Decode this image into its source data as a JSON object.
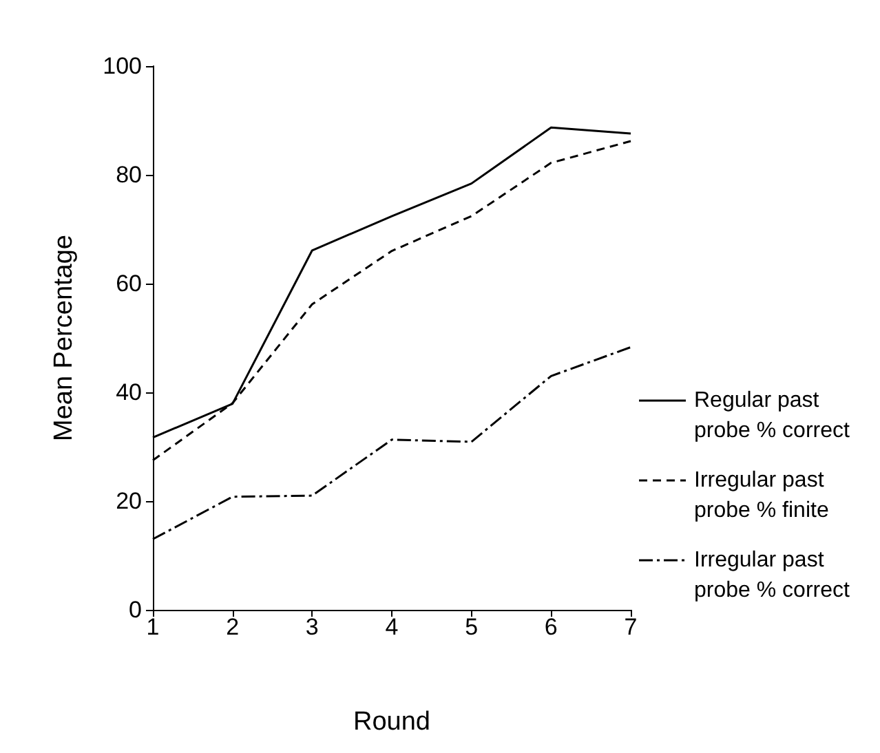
{
  "chart_data": {
    "type": "line",
    "xlabel": "Round",
    "ylabel": "Mean Percentage",
    "x": [
      1,
      2,
      3,
      4,
      5,
      6,
      7
    ],
    "xlim": [
      1,
      7
    ],
    "xticks": [
      1,
      2,
      3,
      4,
      5,
      6,
      7
    ],
    "ylim": [
      0,
      100
    ],
    "yticks": [
      0,
      20,
      40,
      60,
      80,
      100
    ],
    "grid": false,
    "legend": "right",
    "marker": "none",
    "series": [
      {
        "name": "Regular past probe % correct",
        "color": "#000000",
        "line_style": "solid",
        "values": [
          31.7,
          37.9,
          66.1,
          72.4,
          78.4,
          88.7,
          87.6
        ]
      },
      {
        "name": "Irregular past probe % finite",
        "color": "#000000",
        "line_style": "dashed",
        "values": [
          27.5,
          38,
          56.2,
          66,
          72.4,
          82.2,
          86.2
        ]
      },
      {
        "name": "Irregular past probe % correct",
        "color": "#000000",
        "line_style": "dashdot",
        "values": [
          13,
          20.8,
          21,
          31.3,
          30.9,
          43,
          48.3
        ]
      }
    ]
  }
}
